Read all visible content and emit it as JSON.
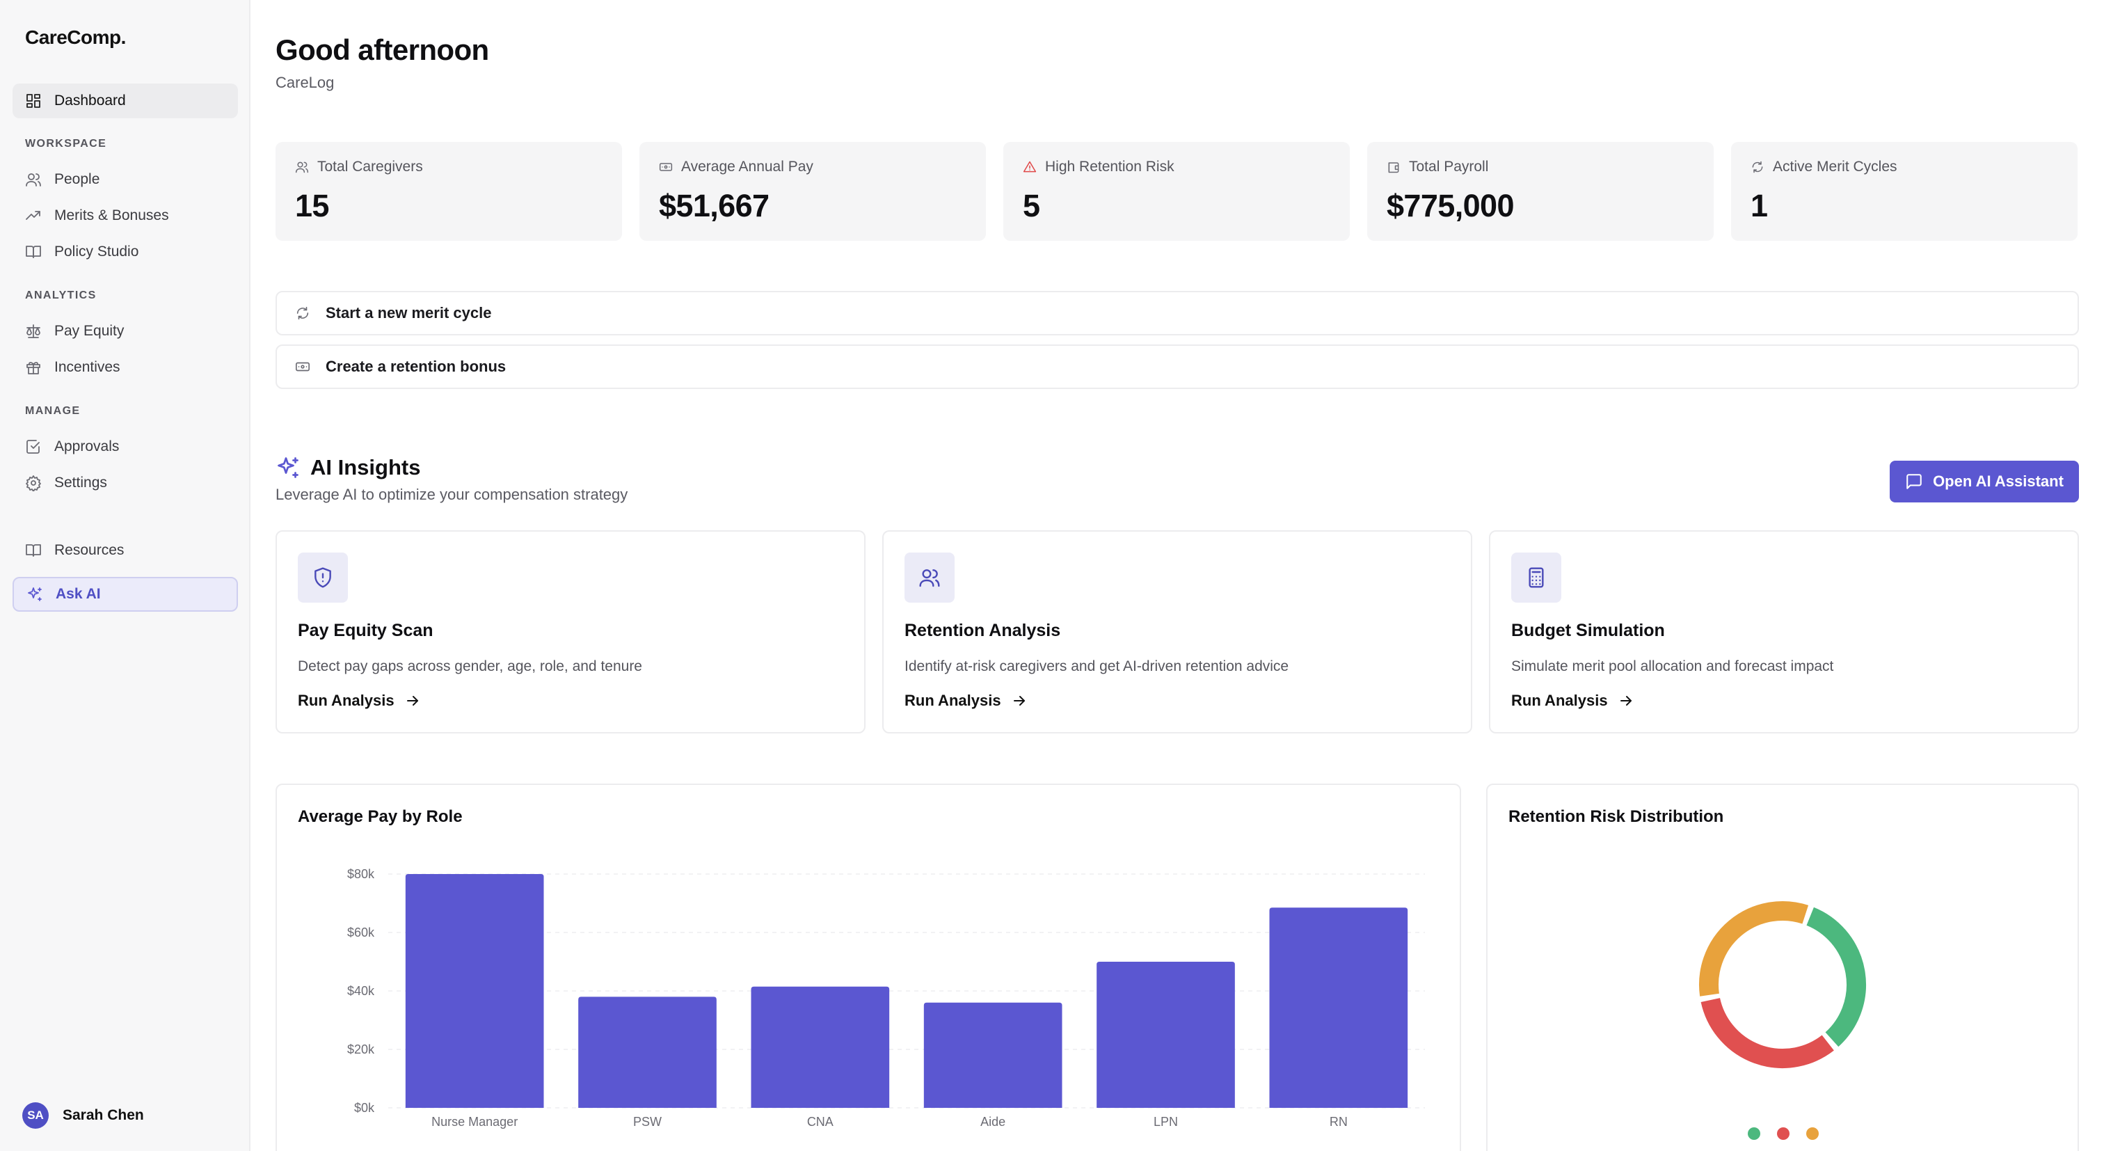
{
  "app": {
    "brand": "CareComp."
  },
  "sidebar": {
    "dashboard": "Dashboard",
    "sections": {
      "workspace": "WORKSPACE",
      "analytics": "ANALYTICS",
      "manage": "MANAGE"
    },
    "workspace_items": [
      {
        "label": "People",
        "icon": "users-icon"
      },
      {
        "label": "Merits & Bonuses",
        "icon": "trending-up-icon"
      },
      {
        "label": "Policy Studio",
        "icon": "book-icon"
      }
    ],
    "analytics_items": [
      {
        "label": "Pay Equity",
        "icon": "scale-icon"
      },
      {
        "label": "Incentives",
        "icon": "gift-icon"
      }
    ],
    "manage_items": [
      {
        "label": "Approvals",
        "icon": "check-square-icon"
      },
      {
        "label": "Settings",
        "icon": "gear-icon"
      }
    ],
    "resources": "Resources",
    "ask_ai": "Ask AI",
    "user": {
      "initials": "SA",
      "name": "Sarah Chen"
    }
  },
  "header": {
    "greeting": "Good afternoon",
    "org": "CareLog"
  },
  "stats": [
    {
      "label": "Total Caregivers",
      "value": "15",
      "icon": "users-icon"
    },
    {
      "label": "Average Annual Pay",
      "value": "$51,667",
      "icon": "banknote-icon"
    },
    {
      "label": "High Retention Risk",
      "value": "5",
      "icon": "alert-triangle-icon",
      "icon_color": "#e04848"
    },
    {
      "label": "Total Payroll",
      "value": "$775,000",
      "icon": "wallet-icon"
    },
    {
      "label": "Active Merit Cycles",
      "value": "1",
      "icon": "refresh-icon"
    }
  ],
  "actions": [
    {
      "label": "Start a new merit cycle",
      "icon": "refresh-icon"
    },
    {
      "label": "Create a retention bonus",
      "icon": "banknote-icon"
    }
  ],
  "ai_insights": {
    "title": "AI Insights",
    "subtitle": "Leverage AI to optimize your compensation strategy",
    "button": "Open AI Assistant",
    "cards": [
      {
        "title": "Pay Equity Scan",
        "description": "Detect pay gaps across gender, age, role, and tenure",
        "cta": "Run Analysis",
        "icon": "shield-alert-icon"
      },
      {
        "title": "Retention Analysis",
        "description": "Identify at-risk caregivers and get AI-driven retention advice",
        "cta": "Run Analysis",
        "icon": "users-icon"
      },
      {
        "title": "Budget Simulation",
        "description": "Simulate merit pool allocation and forecast impact",
        "cta": "Run Analysis",
        "icon": "calculator-icon"
      }
    ]
  },
  "colors": {
    "accent": "#5b57d1",
    "risk_low": "#4cb87e",
    "risk_medium": "#e8a23c",
    "risk_high": "#e05050"
  },
  "chart_data": [
    {
      "type": "bar",
      "title": "Average Pay by Role",
      "categories": [
        "Nurse Manager",
        "PSW",
        "CNA",
        "Aide",
        "LPN",
        "RN"
      ],
      "values": [
        80000,
        38000,
        41500,
        36000,
        50000,
        68500
      ],
      "ylim": [
        0,
        80000
      ],
      "yticks": [
        "$0k",
        "$20k",
        "$40k",
        "$60k",
        "$80k"
      ],
      "ytick_values": [
        0,
        20000,
        40000,
        60000,
        80000
      ],
      "grid": true,
      "color": "#5b57d1"
    },
    {
      "type": "pie",
      "title": "Retention Risk Distribution",
      "donut": true,
      "slices": [
        {
          "value": 5,
          "color": "#4cb87e"
        },
        {
          "value": 5,
          "color": "#e05050"
        },
        {
          "value": 5,
          "color": "#e8a23c"
        }
      ]
    }
  ]
}
